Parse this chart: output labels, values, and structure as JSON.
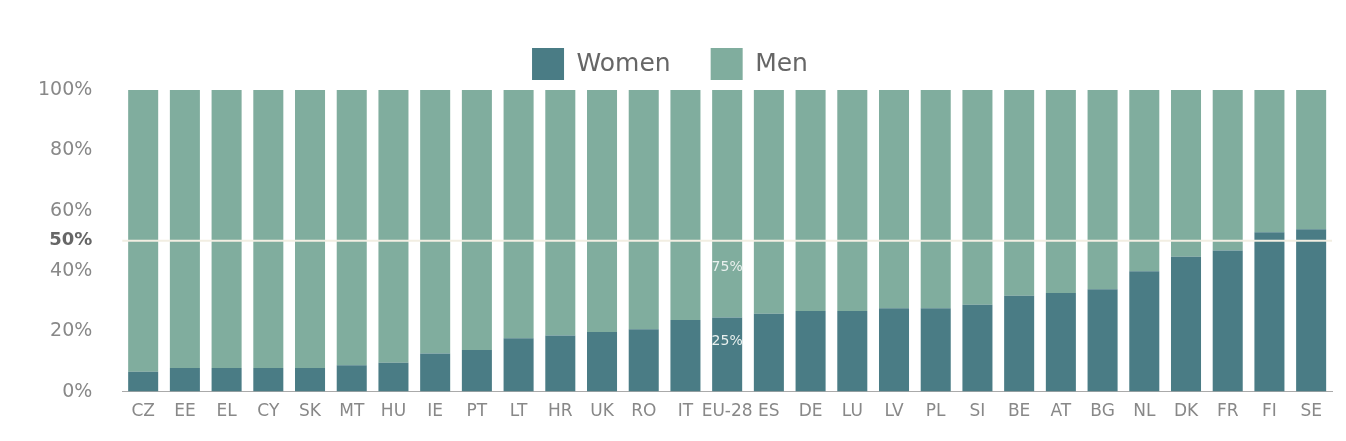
{
  "chart_data": {
    "type": "bar",
    "stacked": true,
    "legend": "top",
    "grid": false,
    "categories": [
      "CZ",
      "EE",
      "EL",
      "CY",
      "SK",
      "MT",
      "HU",
      "IE",
      "PT",
      "LT",
      "HR",
      "UK",
      "RO",
      "IT",
      "EU-28",
      "ES",
      "DE",
      "LU",
      "LV",
      "PL",
      "SI",
      "BE",
      "AT",
      "BG",
      "NL",
      "DK",
      "FR",
      "FI",
      "SE"
    ],
    "series": [
      {
        "name": "Women",
        "color": "#4a7c85",
        "values": [
          6.6,
          7.8,
          7.8,
          7.8,
          7.8,
          8.7,
          9.6,
          12.6,
          13.8,
          17.7,
          18.6,
          19.8,
          20.7,
          23.7,
          24.6,
          25.8,
          26.7,
          26.7,
          27.6,
          27.6,
          28.8,
          31.8,
          32.7,
          33.9,
          39.9,
          44.7,
          46.8,
          52.8,
          53.8
        ],
        "value_labels": [
          null,
          null,
          null,
          null,
          null,
          null,
          null,
          null,
          null,
          null,
          null,
          null,
          null,
          null,
          "25%",
          null,
          null,
          null,
          null,
          null,
          null,
          null,
          null,
          null,
          null,
          null,
          null,
          null,
          null
        ]
      },
      {
        "name": "Men",
        "color": "#80ad9e",
        "values": [
          93.4,
          92.2,
          92.2,
          92.2,
          92.2,
          91.3,
          90.4,
          87.4,
          86.2,
          82.3,
          81.4,
          80.2,
          79.3,
          76.3,
          75.4,
          74.2,
          73.3,
          73.3,
          72.4,
          72.4,
          71.2,
          68.2,
          67.3,
          66.1,
          60.1,
          55.3,
          53.2,
          47.2,
          46.2
        ],
        "value_labels": [
          null,
          null,
          null,
          null,
          null,
          null,
          null,
          null,
          null,
          null,
          null,
          null,
          null,
          null,
          "75%",
          null,
          null,
          null,
          null,
          null,
          null,
          null,
          null,
          null,
          null,
          null,
          null,
          null,
          null
        ]
      }
    ],
    "ylim": [
      0,
      100
    ],
    "yticks": [
      {
        "value": 0,
        "label": "0%"
      },
      {
        "value": 20,
        "label": "20%"
      },
      {
        "value": 40,
        "label": "40%"
      },
      {
        "value": 60,
        "label": "60%"
      },
      {
        "value": 80,
        "label": "80%"
      },
      {
        "value": 100,
        "label": "100%"
      }
    ],
    "ref_lines": [
      {
        "axis": "y",
        "value": 50,
        "label": "50%",
        "color": "#f2eee2"
      }
    ]
  }
}
